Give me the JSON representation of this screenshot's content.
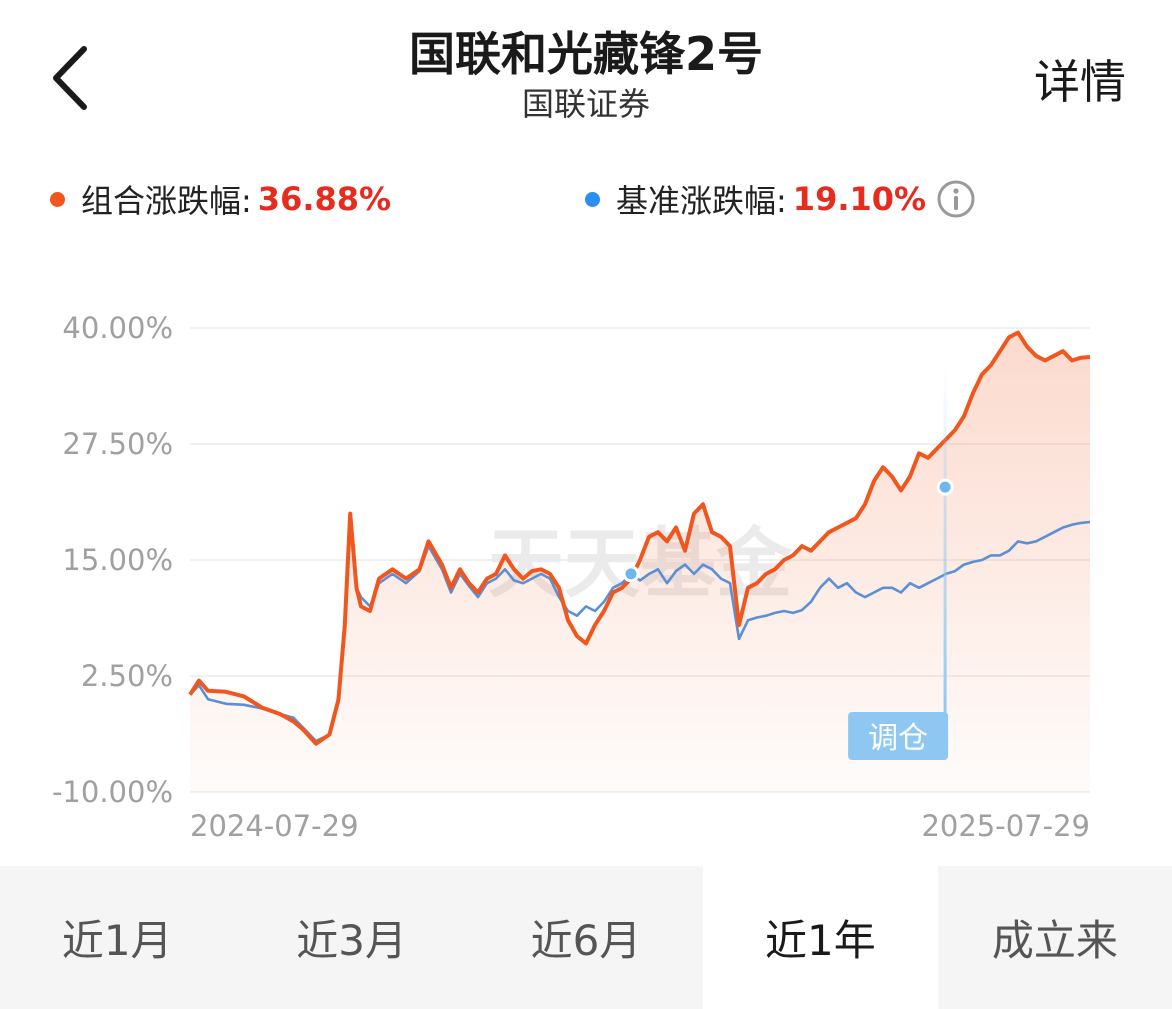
{
  "header": {
    "title": "国联和光藏锋2号",
    "subtitle": "国联证券",
    "detail_label": "详情",
    "back_icon": "chevron-left-icon"
  },
  "legend": {
    "portfolio": {
      "label": "组合涨跌幅:",
      "value": "36.88%",
      "color": "#f0561d"
    },
    "benchmark": {
      "label": "基准涨跌幅:",
      "value": "19.10%",
      "color": "#2b8ef0"
    },
    "info_icon": "info-circle-icon"
  },
  "chart_data": {
    "type": "line",
    "x_labels": [
      "2024-07-29",
      "2025-07-29"
    ],
    "y_ticks": [
      "40.00%",
      "27.50%",
      "15.00%",
      "2.50%",
      "-10.00%"
    ],
    "ylim": [
      -10,
      40
    ],
    "watermark": "天天基金",
    "rebalance_label": "调仓",
    "rebalance_marker_x": 0.839,
    "series": [
      {
        "name": "组合涨跌幅",
        "color": "#f0561d",
        "x": [
          0,
          0.01,
          0.02,
          0.04,
          0.06,
          0.08,
          0.1,
          0.115,
          0.125,
          0.14,
          0.155,
          0.165,
          0.172,
          0.178,
          0.185,
          0.19,
          0.2,
          0.21,
          0.225,
          0.24,
          0.255,
          0.265,
          0.28,
          0.29,
          0.3,
          0.31,
          0.32,
          0.33,
          0.34,
          0.35,
          0.36,
          0.37,
          0.38,
          0.39,
          0.4,
          0.41,
          0.42,
          0.43,
          0.44,
          0.45,
          0.46,
          0.47,
          0.48,
          0.49,
          0.5,
          0.51,
          0.52,
          0.53,
          0.54,
          0.55,
          0.56,
          0.57,
          0.58,
          0.59,
          0.6,
          0.61,
          0.62,
          0.63,
          0.64,
          0.65,
          0.66,
          0.67,
          0.68,
          0.69,
          0.7,
          0.71,
          0.72,
          0.73,
          0.74,
          0.75,
          0.76,
          0.77,
          0.78,
          0.79,
          0.8,
          0.81,
          0.82,
          0.83,
          0.84,
          0.85,
          0.86,
          0.87,
          0.88,
          0.89,
          0.9,
          0.91,
          0.92,
          0.93,
          0.94,
          0.95,
          0.96,
          0.97,
          0.98,
          0.99,
          1.0
        ],
        "y": [
          0.5,
          2.0,
          0.9,
          0.8,
          0.3,
          -0.9,
          -1.6,
          -2.4,
          -3.2,
          -4.8,
          -3.8,
          0.0,
          8.0,
          20.0,
          12.0,
          10.0,
          9.5,
          13.0,
          14.0,
          13.0,
          14.0,
          17.0,
          14.5,
          12.0,
          14.0,
          12.5,
          11.5,
          13.0,
          13.5,
          15.5,
          14.0,
          13.0,
          13.8,
          14.0,
          13.5,
          12.0,
          8.5,
          6.8,
          6.0,
          8.0,
          9.5,
          11.5,
          12.0,
          13.0,
          15.0,
          17.5,
          18.0,
          17.0,
          18.5,
          16.0,
          20.0,
          21.0,
          18.0,
          17.5,
          16.5,
          8.0,
          12.0,
          12.5,
          13.5,
          14.0,
          15.0,
          15.5,
          16.5,
          16.0,
          17.0,
          18.0,
          18.5,
          19.0,
          19.5,
          21.0,
          23.5,
          25.0,
          24.0,
          22.5,
          24.0,
          26.5,
          26.0,
          27.0,
          28.0,
          29.0,
          30.5,
          33.0,
          35.0,
          36.0,
          37.5,
          39.0,
          39.5,
          38.0,
          37.0,
          36.5,
          37.0,
          37.5,
          36.5,
          36.8,
          36.88
        ]
      },
      {
        "name": "基准涨跌幅",
        "color": "#5b8fd6",
        "x": [
          0,
          0.01,
          0.02,
          0.04,
          0.06,
          0.08,
          0.1,
          0.115,
          0.125,
          0.14,
          0.155,
          0.165,
          0.172,
          0.178,
          0.185,
          0.19,
          0.2,
          0.21,
          0.225,
          0.24,
          0.255,
          0.265,
          0.28,
          0.29,
          0.3,
          0.31,
          0.32,
          0.33,
          0.34,
          0.35,
          0.36,
          0.37,
          0.38,
          0.39,
          0.4,
          0.41,
          0.42,
          0.43,
          0.44,
          0.45,
          0.46,
          0.47,
          0.48,
          0.49,
          0.5,
          0.51,
          0.52,
          0.53,
          0.54,
          0.55,
          0.56,
          0.57,
          0.58,
          0.59,
          0.6,
          0.61,
          0.62,
          0.63,
          0.64,
          0.65,
          0.66,
          0.67,
          0.68,
          0.69,
          0.7,
          0.71,
          0.72,
          0.73,
          0.74,
          0.75,
          0.76,
          0.77,
          0.78,
          0.79,
          0.8,
          0.81,
          0.82,
          0.83,
          0.84,
          0.85,
          0.86,
          0.87,
          0.88,
          0.89,
          0.9,
          0.91,
          0.92,
          0.93,
          0.94,
          0.95,
          0.96,
          0.97,
          0.98,
          0.99,
          1.0
        ],
        "y": [
          0.5,
          1.5,
          0.0,
          -0.5,
          -0.6,
          -1.0,
          -1.6,
          -2.0,
          -3.0,
          -4.5,
          -3.8,
          -0.3,
          7.5,
          19.5,
          12.0,
          11.0,
          10.0,
          12.5,
          13.5,
          12.5,
          13.8,
          16.5,
          14.0,
          11.5,
          13.5,
          12.2,
          11.0,
          12.5,
          13.0,
          14.0,
          12.8,
          12.5,
          13.0,
          13.5,
          13.0,
          11.0,
          9.5,
          9.0,
          10.0,
          9.5,
          10.5,
          12.0,
          12.5,
          13.5,
          12.8,
          13.5,
          14.0,
          12.5,
          13.8,
          14.5,
          13.5,
          14.5,
          14.0,
          13.0,
          12.5,
          6.5,
          8.5,
          8.8,
          9.0,
          9.3,
          9.5,
          9.3,
          9.6,
          10.5,
          12.0,
          13.0,
          12.0,
          12.5,
          11.5,
          11.0,
          11.5,
          12.0,
          12.0,
          11.5,
          12.5,
          12.0,
          12.5,
          13.0,
          13.5,
          13.8,
          14.5,
          14.8,
          15.0,
          15.5,
          15.5,
          16.0,
          17.0,
          16.8,
          17.0,
          17.5,
          18.0,
          18.5,
          18.8,
          19.0,
          19.1
        ]
      }
    ]
  },
  "tabs": [
    {
      "label": "近1月",
      "active": false
    },
    {
      "label": "近3月",
      "active": false
    },
    {
      "label": "近6月",
      "active": false
    },
    {
      "label": "近1年",
      "active": true
    },
    {
      "label": "成立来",
      "active": false
    }
  ]
}
